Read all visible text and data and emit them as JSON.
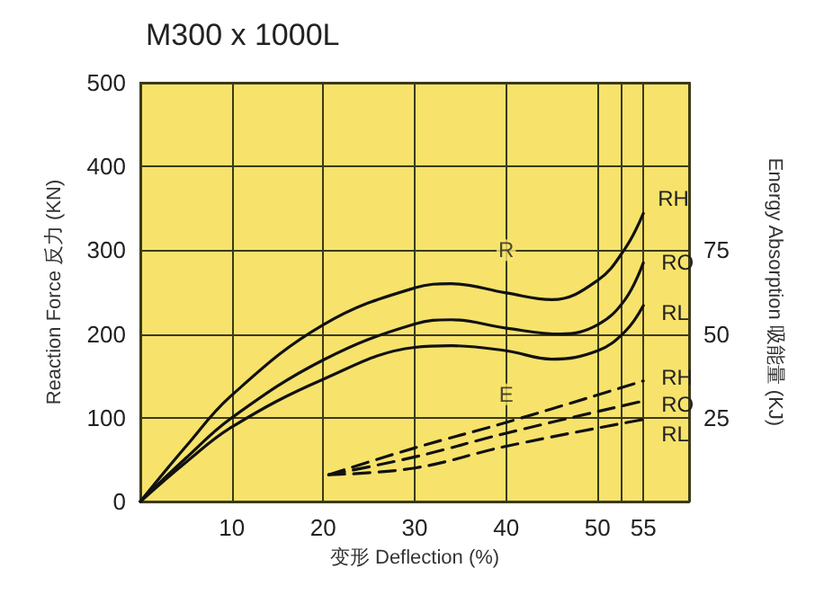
{
  "chart_data": {
    "type": "line",
    "title": "M300 x 1000L",
    "xlabel": "变形 Deflection (%)",
    "ylabel": "Reaction Force 反力 (KN)",
    "y2label": "Energy Absorption 吸能量 (KJ)",
    "xlim": [
      0,
      60
    ],
    "xticks": [
      10,
      20,
      30,
      40,
      50,
      {
        "value": 52.5,
        "label": null
      },
      55
    ],
    "ylim": [
      0,
      500
    ],
    "yticks": [
      0,
      100,
      200,
      300,
      400,
      500
    ],
    "y2lim": [
      0,
      125
    ],
    "y2ticks": [
      25,
      50,
      75
    ],
    "grid": true,
    "legend": false,
    "marker": "none",
    "annotations": [
      {
        "text": "R",
        "x": 40,
        "y": 300
      },
      {
        "text": "E",
        "x": 40,
        "y": 128
      }
    ],
    "series": [
      {
        "name": "RH",
        "color": "#111111",
        "x": [
          0,
          5,
          10,
          20,
          30,
          34,
          40,
          45,
          50,
          53,
          55
        ],
        "values": [
          0,
          66,
          127,
          211,
          255,
          260,
          249,
          241,
          264,
          302,
          344
        ]
      },
      {
        "name": "RO",
        "color": "#111111",
        "x": [
          0,
          5,
          10,
          20,
          30,
          34,
          40,
          46,
          50,
          53,
          55
        ],
        "values": [
          0,
          52,
          100,
          169,
          212,
          217,
          207,
          200,
          211,
          241,
          285
        ]
      },
      {
        "name": "RL",
        "color": "#111111",
        "x": [
          0,
          5,
          10,
          20,
          30,
          34,
          40,
          45,
          50,
          53,
          55
        ],
        "values": [
          0,
          47,
          89,
          146,
          184,
          186,
          180,
          170,
          180,
          203,
          234
        ]
      },
      {
        "name": "RH",
        "color": "#111111",
        "axis": "y2",
        "line_style": "dashed",
        "x": [
          20.6,
          30,
          40,
          55
        ],
        "values": [
          8,
          16,
          23.6,
          36
        ]
      },
      {
        "name": "RO",
        "color": "#111111",
        "axis": "y2",
        "line_style": "dashed",
        "x": [
          20.6,
          30,
          40,
          55
        ],
        "values": [
          8,
          13.3,
          20.4,
          30
        ]
      },
      {
        "name": "RL",
        "color": "#111111",
        "axis": "y2",
        "line_style": "dashed",
        "x": [
          20.6,
          30,
          40,
          55
        ],
        "values": [
          8,
          10,
          16.5,
          24.5
        ]
      }
    ]
  }
}
